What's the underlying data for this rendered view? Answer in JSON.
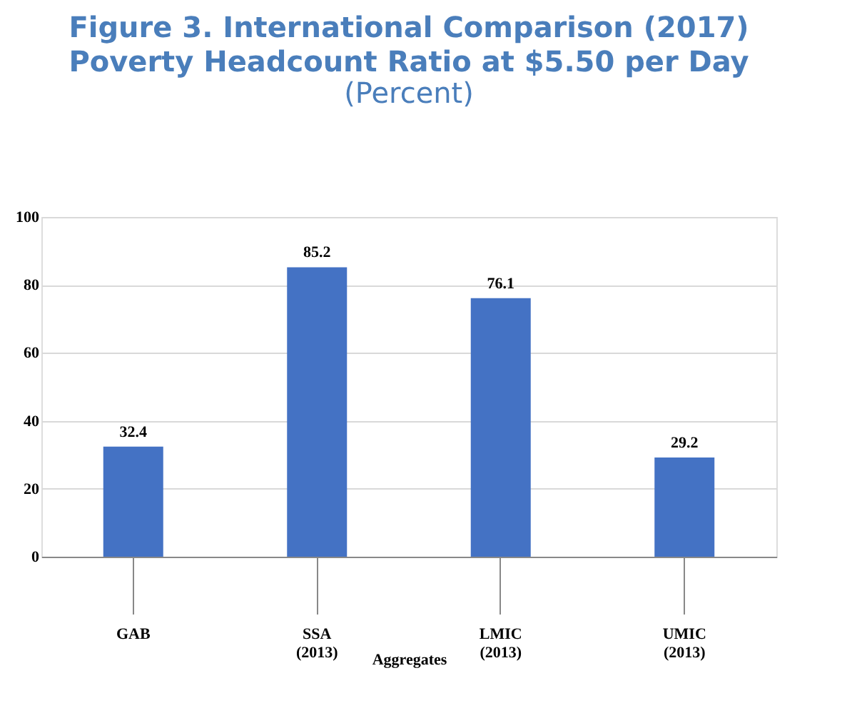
{
  "chart_data": {
    "type": "bar",
    "title": [
      "Figure 3. International Comparison (2017)",
      "Poverty Headcount Ratio at $5.50 per Day"
    ],
    "subtitle": "(Percent)",
    "categories": [
      "GAB",
      "SSA\n(2013)",
      "LMIC\n(2013)",
      "UMIC\n(2013)"
    ],
    "values": [
      32.4,
      85.2,
      76.1,
      29.2
    ],
    "color": "#4472c4",
    "xlabel": "Aggregates",
    "ylim": [
      0,
      100
    ],
    "yticks": [
      0,
      20,
      40,
      60,
      80,
      100
    ],
    "grid": "y",
    "data_labels": true
  }
}
